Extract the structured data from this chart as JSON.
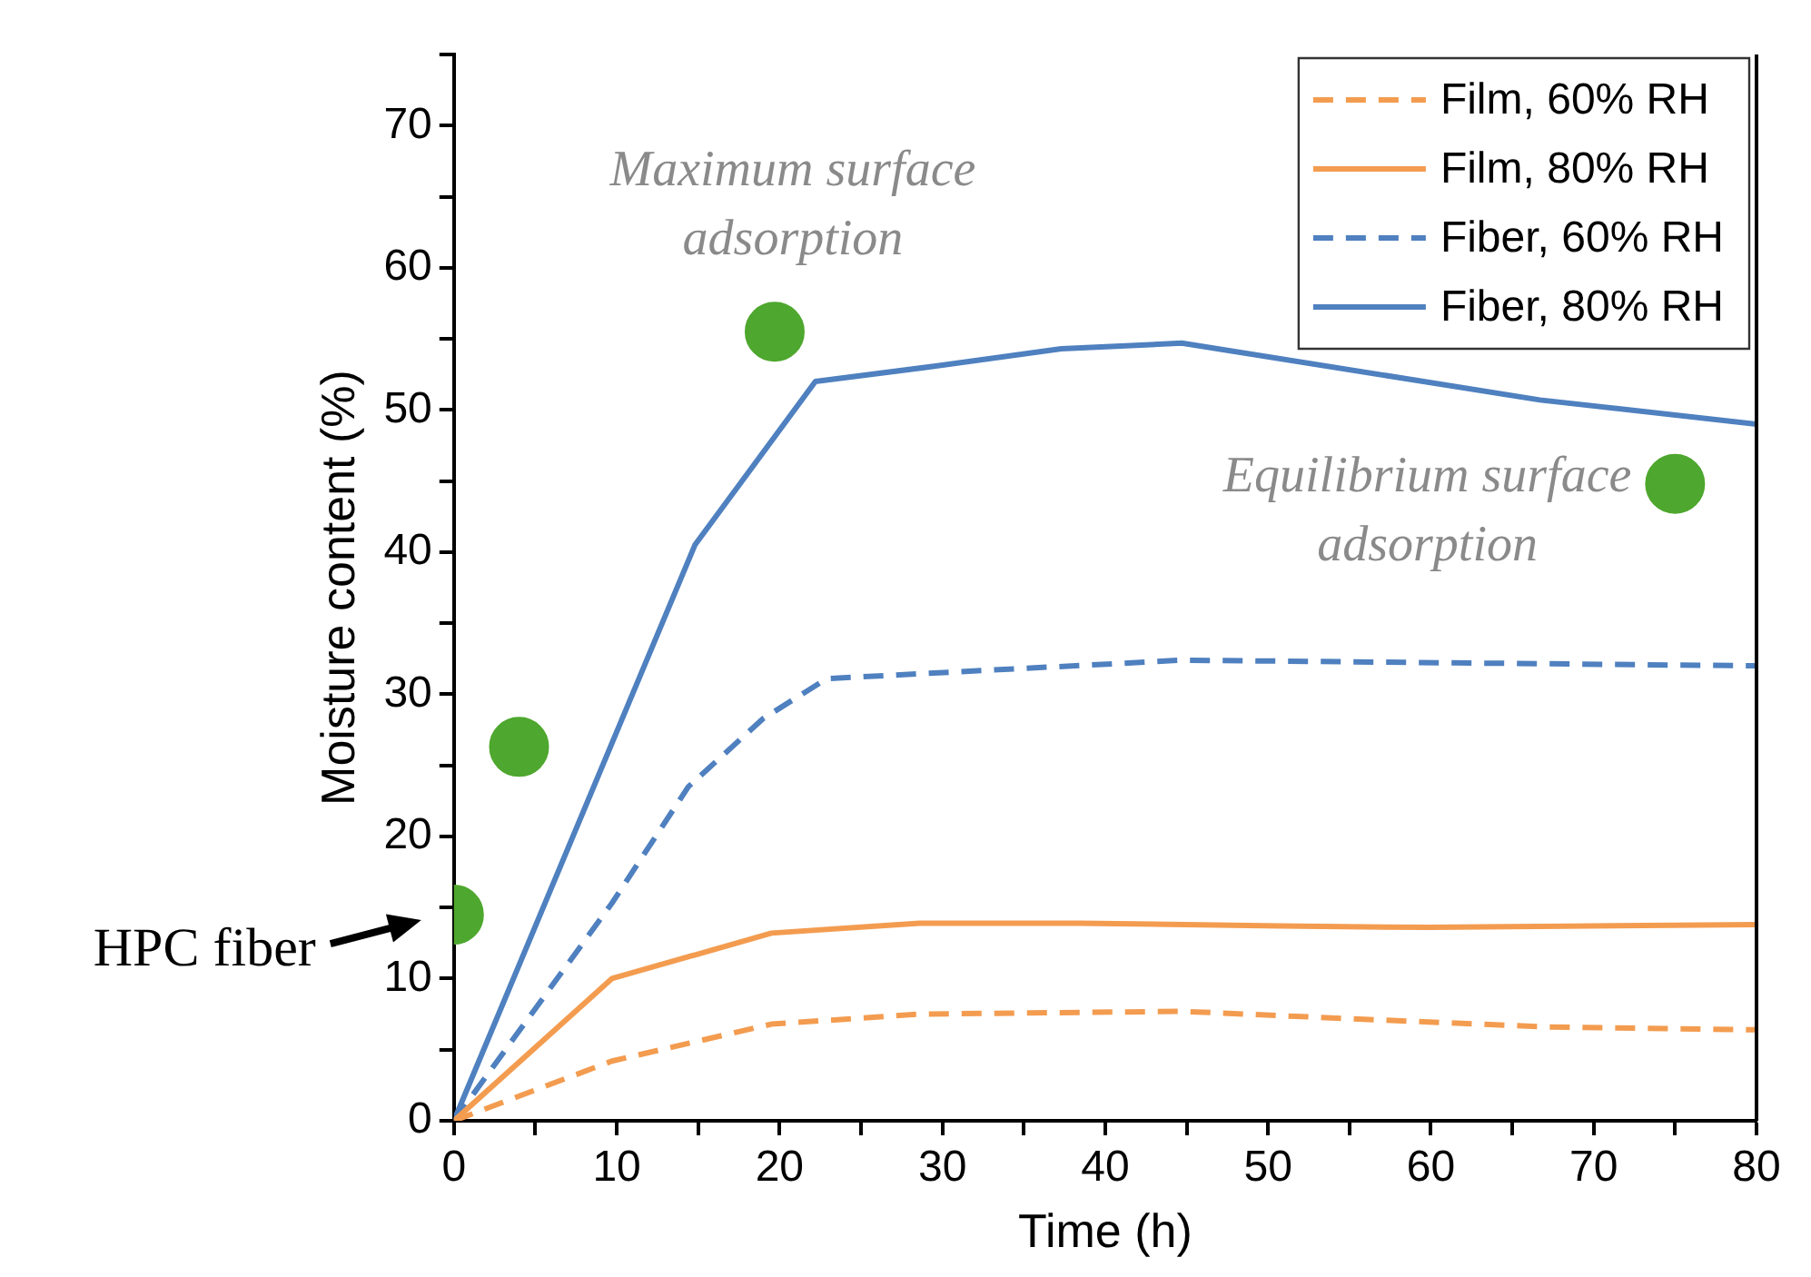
{
  "chart_data": {
    "type": "line",
    "xlabel": "Time (h)",
    "ylabel": "Moisture content (%)",
    "xlim": [
      0,
      80
    ],
    "ylim": [
      0,
      75
    ],
    "xticks": [
      0,
      {
        "value": 5,
        "label": null
      },
      10,
      {
        "value": 15,
        "label": null
      },
      20,
      {
        "value": 25,
        "label": null
      },
      30,
      {
        "value": 35,
        "label": null
      },
      40,
      {
        "value": 45,
        "label": null
      },
      50,
      {
        "value": 55,
        "label": null
      },
      60,
      {
        "value": 65,
        "label": null
      },
      70,
      {
        "value": 75,
        "label": null
      },
      80
    ],
    "yticks": [
      0,
      {
        "value": 5,
        "label": null
      },
      10,
      {
        "value": 15,
        "label": null
      },
      20,
      {
        "value": 25,
        "label": null
      },
      30,
      {
        "value": 35,
        "label": null
      },
      40,
      {
        "value": 45,
        "label": null
      },
      50,
      {
        "value": 55,
        "label": null
      },
      60,
      {
        "value": 65,
        "label": null
      },
      70,
      {
        "value": 75,
        "label": null
      }
    ],
    "legend": "top right",
    "series": [
      {
        "name": "Film, 60% RH",
        "color": "#f39c50",
        "line_style": "dashed",
        "marker": "none",
        "x": [
          0,
          9.7,
          19.5,
          28.6,
          44.7,
          54.6,
          67.1,
          80
        ],
        "values": [
          0,
          4.2,
          6.8,
          7.5,
          7.7,
          7.2,
          6.6,
          6.4
        ]
      },
      {
        "name": "Film, 80% RH",
        "color": "#f39c50",
        "line_style": "solid",
        "marker": "none",
        "x": [
          0,
          9.7,
          19.5,
          28.6,
          38.4,
          50.8,
          59.9,
          80
        ],
        "values": [
          0,
          10.0,
          13.2,
          13.9,
          13.9,
          13.7,
          13.6,
          13.8
        ]
      },
      {
        "name": "Fiber, 60% RH",
        "color": "#4f80bf",
        "line_style": "dashed",
        "marker": "none",
        "x": [
          0,
          9.7,
          14.4,
          19.0,
          22.9,
          41.4,
          44.7,
          80
        ],
        "values": [
          0,
          15.3,
          23.5,
          28.3,
          31.1,
          32.2,
          32.4,
          32.0
        ]
      },
      {
        "name": "Fiber, 80% RH",
        "color": "#4f80bf",
        "line_style": "solid",
        "marker": "none",
        "x": [
          0,
          14.8,
          22.2,
          29.7,
          37.3,
          44.7,
          66.7,
          80
        ],
        "values": [
          0,
          40.5,
          52.0,
          53.1,
          54.3,
          54.7,
          50.7,
          49.0
        ]
      },
      {
        "type": "scatter",
        "color": "#4ea72e",
        "marker": "circle",
        "x": [
          0,
          4.0,
          19.7,
          75.0
        ],
        "values": [
          14.5,
          26.3,
          55.5,
          44.8
        ]
      }
    ],
    "annotations": [
      {
        "text": "HPC fiber",
        "x": 0,
        "y": 14.5
      },
      {
        "text": "Maximum surface adsorption",
        "x": 19.7,
        "y": 55.5
      },
      {
        "text": "Equilibrium surface adsorption",
        "x": 75.0,
        "y": 44.8
      }
    ]
  }
}
